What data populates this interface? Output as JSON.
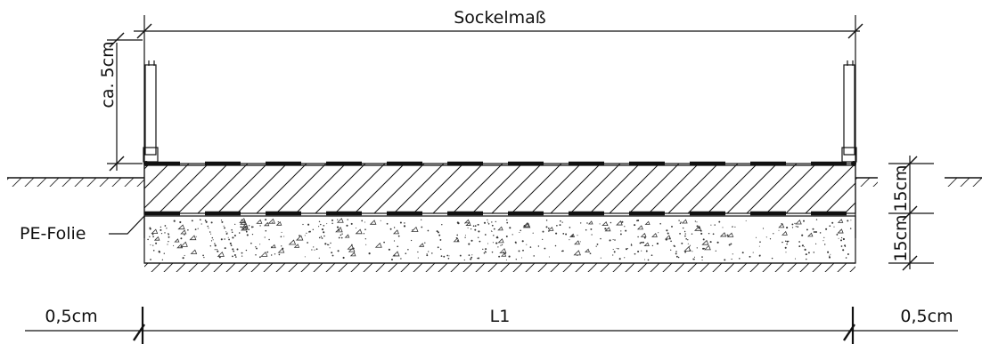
{
  "labels": {
    "top_dimension": "Sockelmaß",
    "height_dimension": "ca. 5cm",
    "membrane": "PE-Folie",
    "layer_upper": "15cm",
    "layer_lower": "15cm",
    "left_offset": "0,5cm",
    "main_length": "L1",
    "right_offset": "0,5cm"
  },
  "colors": {
    "line": "#111111",
    "background": "#ffffff",
    "aggregate_marks": "#333333"
  }
}
